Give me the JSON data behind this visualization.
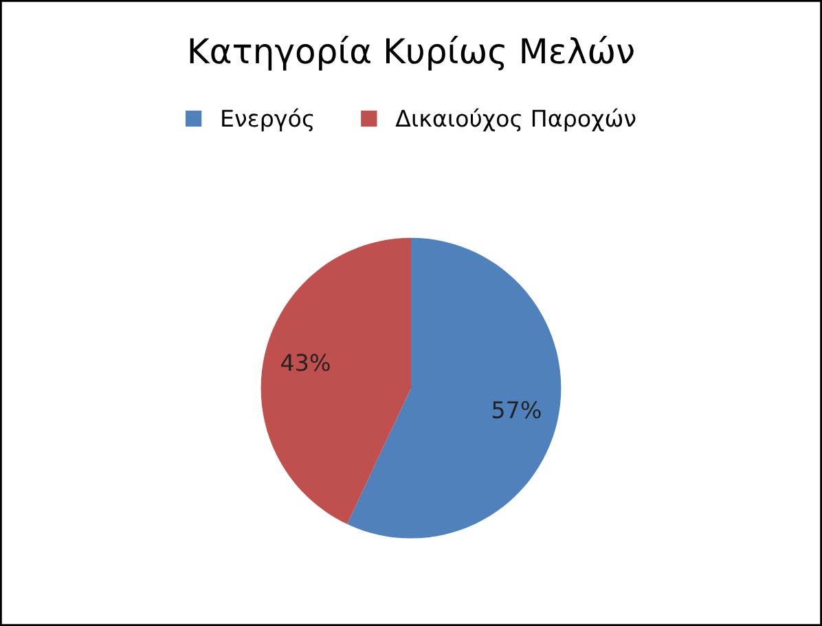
{
  "chart_data": {
    "type": "pie",
    "title": "Κατηγορία Κυρίως Μελών",
    "categories": [
      "Ενεργός",
      "Δικαιούχος Παροχών"
    ],
    "values": [
      57,
      43
    ],
    "colors": [
      "#4f81bd",
      "#c0504d"
    ],
    "value_labels": [
      "57%",
      "43%"
    ],
    "legend": "top"
  }
}
